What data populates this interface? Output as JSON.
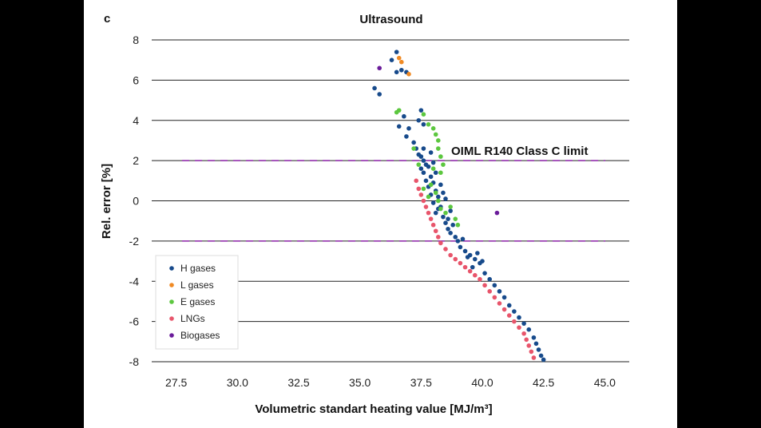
{
  "panel_label": "c",
  "chart_data": {
    "type": "scatter",
    "title": "Ultrasound",
    "xlabel": "Volumetric standart heating value [MJ/m³]",
    "ylabel": "Rel. error [%]",
    "xlim": [
      26.5,
      46.0
    ],
    "ylim": [
      -8,
      8
    ],
    "xticks": [
      "27.5",
      "30.0",
      "32.5",
      "35.0",
      "37.5",
      "40.0",
      "42.5",
      "45.0"
    ],
    "xtick_values": [
      27.5,
      30.0,
      32.5,
      35.0,
      37.5,
      40.0,
      42.5,
      45.0
    ],
    "yticks": [
      "8",
      "6",
      "4",
      "2",
      "0",
      "-2",
      "-4",
      "-6",
      "-8"
    ],
    "ytick_values": [
      8,
      6,
      4,
      2,
      0,
      -2,
      -4,
      -6,
      -8
    ],
    "grid": "horizontal",
    "legend_position": "bottom-left",
    "limits": {
      "label": "OIML R140 Class C limit",
      "values": [
        2,
        -2
      ],
      "color": "#8e24aa",
      "style": "dashed"
    },
    "series": [
      {
        "name": "H gases",
        "color": "#174a8b",
        "points": [
          [
            36.5,
            7.4
          ],
          [
            36.3,
            7.0
          ],
          [
            36.5,
            6.4
          ],
          [
            36.7,
            6.5
          ],
          [
            36.9,
            6.4
          ],
          [
            35.6,
            5.6
          ],
          [
            35.8,
            5.3
          ],
          [
            37.5,
            4.5
          ],
          [
            36.8,
            4.2
          ],
          [
            37.4,
            4.0
          ],
          [
            36.6,
            3.7
          ],
          [
            37.0,
            3.6
          ],
          [
            36.9,
            3.2
          ],
          [
            37.6,
            3.8
          ],
          [
            37.2,
            2.9
          ],
          [
            37.3,
            2.6
          ],
          [
            37.4,
            2.3
          ],
          [
            37.5,
            2.2
          ],
          [
            37.6,
            2.0
          ],
          [
            37.7,
            1.8
          ],
          [
            37.5,
            1.6
          ],
          [
            37.6,
            1.4
          ],
          [
            37.8,
            1.7
          ],
          [
            37.9,
            1.2
          ],
          [
            37.7,
            1.0
          ],
          [
            37.8,
            0.7
          ],
          [
            38.0,
            0.9
          ],
          [
            38.1,
            0.5
          ],
          [
            37.9,
            0.3
          ],
          [
            38.2,
            0.2
          ],
          [
            38.0,
            -0.1
          ],
          [
            38.3,
            -0.3
          ],
          [
            38.1,
            -0.6
          ],
          [
            38.4,
            -0.8
          ],
          [
            38.5,
            -1.1
          ],
          [
            38.6,
            -1.4
          ],
          [
            38.7,
            -1.6
          ],
          [
            38.9,
            -1.8
          ],
          [
            39.0,
            -2.0
          ],
          [
            39.1,
            -2.3
          ],
          [
            39.3,
            -2.5
          ],
          [
            39.5,
            -2.7
          ],
          [
            39.7,
            -2.9
          ],
          [
            39.9,
            -3.1
          ],
          [
            39.4,
            -2.8
          ],
          [
            39.6,
            -3.3
          ],
          [
            40.1,
            -3.6
          ],
          [
            40.3,
            -3.9
          ],
          [
            40.5,
            -4.2
          ],
          [
            40.7,
            -4.5
          ],
          [
            40.9,
            -4.8
          ],
          [
            41.1,
            -5.2
          ],
          [
            41.3,
            -5.5
          ],
          [
            41.5,
            -5.8
          ],
          [
            41.7,
            -6.1
          ],
          [
            41.9,
            -6.4
          ],
          [
            42.1,
            -6.8
          ],
          [
            42.2,
            -7.1
          ],
          [
            42.3,
            -7.4
          ],
          [
            42.4,
            -7.7
          ],
          [
            42.5,
            -7.9
          ],
          [
            37.9,
            2.4
          ],
          [
            38.0,
            1.9
          ],
          [
            38.3,
            0.8
          ],
          [
            38.4,
            0.4
          ],
          [
            38.2,
            -0.4
          ],
          [
            38.6,
            -0.9
          ],
          [
            38.8,
            -1.2
          ],
          [
            37.6,
            2.6
          ],
          [
            38.1,
            1.4
          ],
          [
            38.5,
            0.1
          ],
          [
            38.7,
            -0.5
          ],
          [
            39.2,
            -1.9
          ],
          [
            39.8,
            -2.6
          ],
          [
            40.0,
            -3.0
          ]
        ]
      },
      {
        "name": "L gases",
        "color": "#f08a24",
        "points": [
          [
            36.6,
            7.1
          ],
          [
            36.7,
            6.9
          ],
          [
            37.0,
            6.3
          ]
        ]
      },
      {
        "name": "E gases",
        "color": "#5cc73f",
        "points": [
          [
            36.6,
            4.5
          ],
          [
            36.5,
            4.4
          ],
          [
            37.6,
            4.3
          ],
          [
            37.2,
            2.6
          ],
          [
            37.4,
            1.8
          ],
          [
            37.8,
            3.8
          ],
          [
            38.0,
            3.6
          ],
          [
            38.1,
            3.3
          ],
          [
            38.2,
            3.0
          ],
          [
            38.2,
            2.6
          ],
          [
            38.3,
            2.2
          ],
          [
            38.4,
            1.8
          ],
          [
            38.3,
            1.4
          ],
          [
            38.0,
            1.6
          ],
          [
            37.9,
            0.8
          ],
          [
            38.1,
            0.4
          ],
          [
            38.2,
            0.0
          ],
          [
            38.3,
            -0.4
          ],
          [
            38.5,
            -0.6
          ],
          [
            38.7,
            -0.3
          ],
          [
            38.9,
            -0.9
          ],
          [
            39.0,
            -1.2
          ],
          [
            37.6,
            0.6
          ],
          [
            37.8,
            0.2
          ]
        ]
      },
      {
        "name": "LNGs",
        "color": "#e8556b",
        "points": [
          [
            37.3,
            1.0
          ],
          [
            37.4,
            0.6
          ],
          [
            37.5,
            0.3
          ],
          [
            37.6,
            0.0
          ],
          [
            37.7,
            -0.3
          ],
          [
            37.8,
            -0.6
          ],
          [
            37.9,
            -0.9
          ],
          [
            38.0,
            -1.2
          ],
          [
            38.1,
            -1.5
          ],
          [
            38.2,
            -1.8
          ],
          [
            38.3,
            -2.1
          ],
          [
            38.5,
            -2.4
          ],
          [
            38.7,
            -2.7
          ],
          [
            38.9,
            -2.9
          ],
          [
            39.1,
            -3.1
          ],
          [
            39.3,
            -3.3
          ],
          [
            39.5,
            -3.5
          ],
          [
            39.7,
            -3.7
          ],
          [
            39.9,
            -3.9
          ],
          [
            40.1,
            -4.2
          ],
          [
            40.3,
            -4.5
          ],
          [
            40.5,
            -4.8
          ],
          [
            40.7,
            -5.1
          ],
          [
            40.9,
            -5.4
          ],
          [
            41.1,
            -5.7
          ],
          [
            41.3,
            -6.0
          ],
          [
            41.5,
            -6.3
          ],
          [
            41.7,
            -6.6
          ],
          [
            41.8,
            -6.9
          ],
          [
            41.9,
            -7.2
          ],
          [
            42.0,
            -7.5
          ],
          [
            42.1,
            -7.8
          ]
        ]
      },
      {
        "name": "Biogases",
        "color": "#6a1b9a",
        "points": [
          [
            35.8,
            6.6
          ],
          [
            40.6,
            -0.6
          ]
        ]
      }
    ]
  }
}
